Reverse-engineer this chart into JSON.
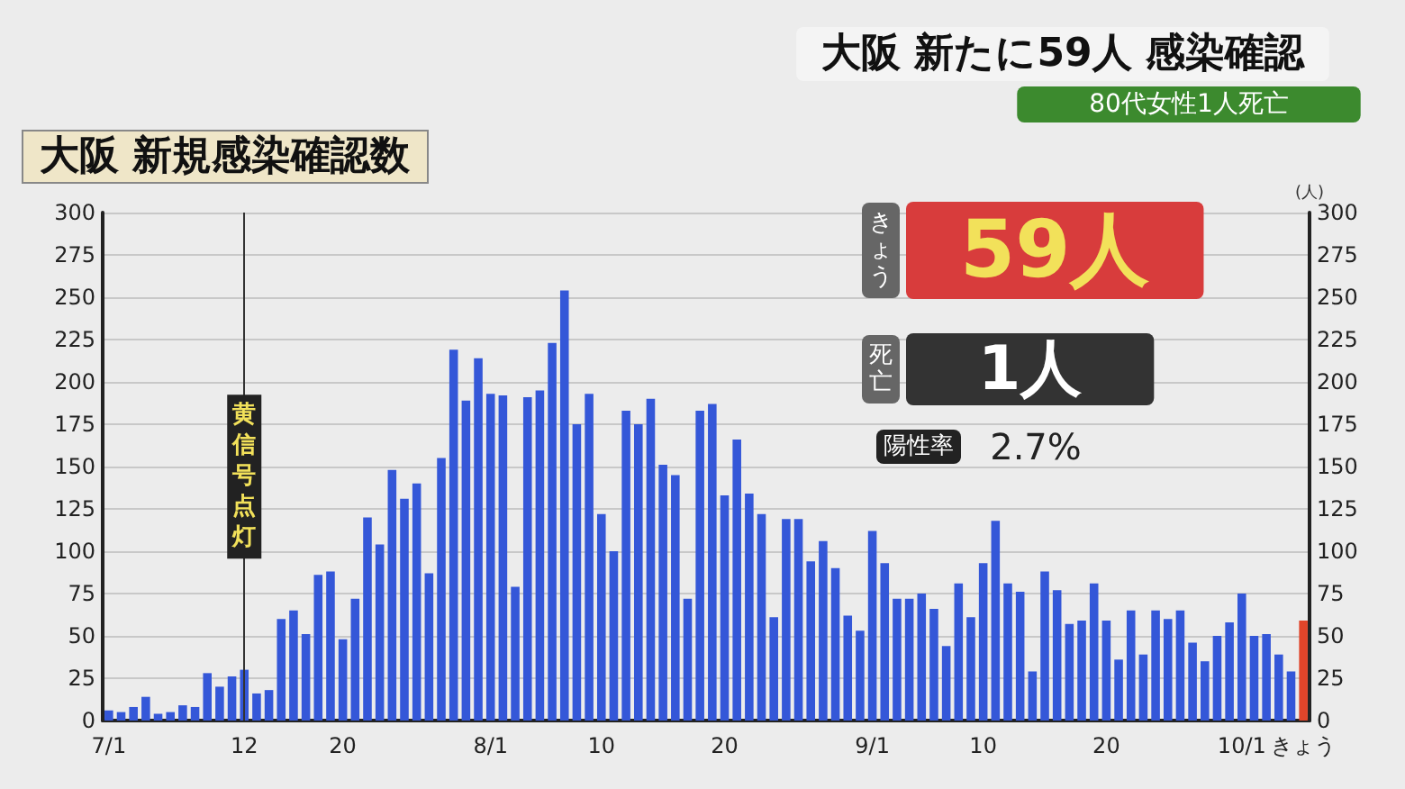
{
  "chart_data": {
    "type": "bar",
    "title": "大阪 新規感染確認数",
    "categories": [
      "7/1",
      null,
      null,
      null,
      null,
      null,
      null,
      null,
      null,
      null,
      null,
      "12",
      null,
      null,
      null,
      null,
      null,
      null,
      null,
      "20",
      null,
      null,
      null,
      null,
      null,
      null,
      null,
      null,
      null,
      null,
      null,
      "8/1",
      null,
      null,
      null,
      null,
      null,
      null,
      null,
      null,
      "10",
      null,
      null,
      null,
      null,
      null,
      null,
      null,
      null,
      null,
      "20",
      null,
      null,
      null,
      null,
      null,
      null,
      null,
      null,
      null,
      null,
      null,
      "9/1",
      null,
      null,
      null,
      null,
      null,
      null,
      null,
      null,
      "10",
      null,
      null,
      null,
      null,
      null,
      null,
      null,
      null,
      null,
      "20",
      null,
      null,
      null,
      null,
      null,
      null,
      null,
      null,
      null,
      null,
      "10/1",
      null,
      null,
      null,
      null,
      "きょう"
    ],
    "values": [
      6,
      5,
      8,
      14,
      4,
      5,
      9,
      8,
      28,
      20,
      26,
      30,
      16,
      18,
      60,
      65,
      51,
      86,
      88,
      48,
      72,
      120,
      104,
      148,
      131,
      140,
      87,
      155,
      219,
      189,
      214,
      193,
      192,
      79,
      191,
      195,
      223,
      254,
      175,
      193,
      122,
      100,
      183,
      175,
      190,
      151,
      145,
      72,
      183,
      187,
      133,
      166,
      134,
      122,
      61,
      119,
      119,
      94,
      106,
      90,
      62,
      53,
      112,
      93,
      72,
      72,
      75,
      66,
      44,
      81,
      61,
      93,
      118,
      81,
      76,
      29,
      88,
      77,
      57,
      59,
      81,
      59,
      36,
      65,
      39,
      65,
      60,
      65,
      46,
      35,
      50,
      58,
      75,
      50,
      51,
      39,
      29,
      59
    ],
    "colors": [
      "#3457d8",
      "#3457d8",
      "#3457d8",
      "#3457d8",
      "#3457d8",
      "#3457d8",
      "#3457d8",
      "#3457d8",
      "#3457d8",
      "#3457d8",
      "#3457d8",
      "#3457d8",
      "#3457d8",
      "#3457d8",
      "#3457d8",
      "#3457d8",
      "#3457d8",
      "#3457d8",
      "#3457d8",
      "#3457d8",
      "#3457d8",
      "#3457d8",
      "#3457d8",
      "#3457d8",
      "#3457d8",
      "#3457d8",
      "#3457d8",
      "#3457d8",
      "#3457d8",
      "#3457d8",
      "#3457d8",
      "#3457d8",
      "#3457d8",
      "#3457d8",
      "#3457d8",
      "#3457d8",
      "#3457d8",
      "#3457d8",
      "#3457d8",
      "#3457d8",
      "#3457d8",
      "#3457d8",
      "#3457d8",
      "#3457d8",
      "#3457d8",
      "#3457d8",
      "#3457d8",
      "#3457d8",
      "#3457d8",
      "#3457d8",
      "#3457d8",
      "#3457d8",
      "#3457d8",
      "#3457d8",
      "#3457d8",
      "#3457d8",
      "#3457d8",
      "#3457d8",
      "#3457d8",
      "#3457d8",
      "#3457d8",
      "#3457d8",
      "#3457d8",
      "#3457d8",
      "#3457d8",
      "#3457d8",
      "#3457d8",
      "#3457d8",
      "#3457d8",
      "#3457d8",
      "#3457d8",
      "#3457d8",
      "#3457d8",
      "#3457d8",
      "#3457d8",
      "#3457d8",
      "#3457d8",
      "#3457d8",
      "#3457d8",
      "#3457d8",
      "#3457d8",
      "#3457d8",
      "#3457d8",
      "#3457d8",
      "#3457d8",
      "#3457d8",
      "#3457d8",
      "#3457d8",
      "#3457d8",
      "#3457d8",
      "#3457d8",
      "#3457d8",
      "#3457d8",
      "#3457d8",
      "#3457d8",
      "#3457d8",
      "#3457d8",
      "#e0452a"
    ],
    "ylim": [
      0,
      300
    ],
    "yticks": [
      0,
      25,
      50,
      75,
      100,
      125,
      150,
      175,
      200,
      225,
      250,
      275,
      300
    ],
    "y2lim": [
      0,
      300
    ],
    "y2ticks": [
      0,
      25,
      50,
      75,
      100,
      125,
      150,
      175,
      200,
      225,
      250,
      275,
      300
    ],
    "y2label": "(人)",
    "grid": "y",
    "ref_lines": [
      {
        "axis": "x",
        "value": "12",
        "label": "黄信号点灯"
      }
    ],
    "annotations": [
      "大阪 新たに59人 感染確認",
      "80代女性1人死亡",
      "きょう",
      "59人",
      "死亡",
      "1人",
      "陽性率",
      "2.7%"
    ]
  }
}
